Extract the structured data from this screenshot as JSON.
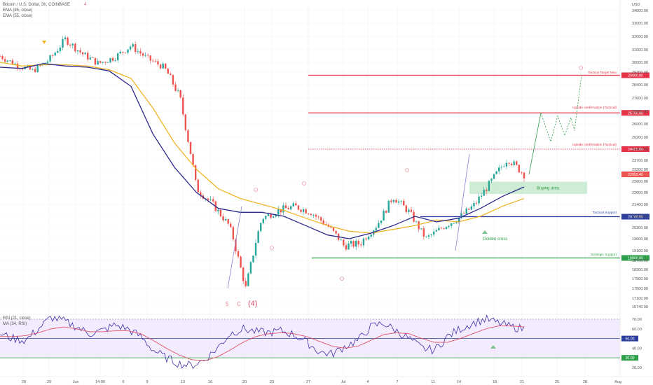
{
  "chart_data": {
    "type": "candlestick",
    "title": "Bitcoin / U.S. Dollar, 3h, COINBASE",
    "title_marker": "4",
    "indicators": [
      "EMA (85, close)",
      "EMA (55, close)"
    ],
    "y_axis": {
      "label": "USD",
      "ticks": [
        16740,
        17100,
        17500,
        17900,
        18300,
        18700,
        19100,
        19600,
        20200,
        20800,
        21400,
        22000,
        22600,
        23200,
        23700,
        24400,
        25200,
        26000,
        26800,
        27600,
        28400,
        29200,
        30000,
        31000,
        32000,
        33000,
        34000
      ],
      "tick_labels": [
        "16740.00",
        "17100.00",
        "17500.00",
        "17900.00",
        "18300.00",
        "18700.00",
        "19100.00",
        "19600.00",
        "20200.00",
        "20800.00",
        "21400.00",
        "22000.00",
        "22600.00",
        "23200.00",
        "23700.00",
        "24400.00",
        "25200.00",
        "26000.00",
        "26800.00",
        "27600.00",
        "28400.00",
        "29200.00",
        "30000.00",
        "31000.00",
        "32000.00",
        "33000.00",
        "34000.00"
      ]
    },
    "x_axis": {
      "ticks": [
        "28",
        "29",
        "Jun",
        "14:00",
        "6",
        "9",
        "13",
        "16",
        "20",
        "23",
        "27",
        "Jul",
        "4",
        "7",
        "11",
        "14",
        "18",
        "21",
        "25",
        "28",
        "Aug"
      ]
    },
    "price_path": [
      [
        "28",
        30500
      ],
      [
        "29",
        29800
      ],
      [
        "29b",
        29300
      ],
      [
        "Jun",
        30200
      ],
      [
        "Jun+",
        31800
      ],
      [
        "14:00",
        30700
      ],
      [
        "14:00+",
        29900
      ],
      [
        "6",
        30400
      ],
      [
        "6+",
        31300
      ],
      [
        "9",
        30300
      ],
      [
        "9+",
        29600
      ],
      [
        "13",
        27600
      ],
      [
        "13+",
        22200
      ],
      [
        "16",
        21400
      ],
      [
        "16+",
        20300
      ],
      [
        "20",
        17500
      ],
      [
        "20+",
        20700
      ],
      [
        "23",
        21100
      ],
      [
        "23+",
        21300
      ],
      [
        "27",
        21000
      ],
      [
        "27+",
        20300
      ],
      [
        "Jul",
        19300
      ],
      [
        "4",
        19400
      ],
      [
        "4+",
        20300
      ],
      [
        "7",
        21800
      ],
      [
        "7+",
        21000
      ],
      [
        "11",
        19600
      ],
      [
        "11+",
        20200
      ],
      [
        "14",
        20700
      ],
      [
        "14+",
        21400
      ],
      [
        "18",
        22600
      ],
      [
        "18+",
        23800
      ],
      [
        "21",
        22950
      ]
    ],
    "ema_85_path": [
      30000,
      29700,
      29800,
      29800,
      29700,
      29400,
      28800,
      27000,
      24800,
      23200,
      22200,
      21700,
      21400,
      21100,
      20700,
      20300,
      20000,
      19900,
      20100,
      20300,
      20600,
      20500,
      20800,
      21300,
      21700
    ],
    "ema_55_path": [
      29600,
      29500,
      29900,
      29700,
      29600,
      29300,
      28300,
      25400,
      23300,
      22000,
      21200,
      21000,
      21000,
      20800,
      20300,
      19800,
      19600,
      19900,
      20300,
      20800,
      20500,
      20700,
      21200,
      21800,
      22300
    ],
    "last_price": 22950.45,
    "last_price_label": "22950.45",
    "levels": [
      {
        "name": "Tactical Target Max",
        "value": 29000,
        "label": "29000.00",
        "color": "#e53246",
        "style": "solid"
      },
      {
        "name": "Upside confirmation (Tactical)",
        "value": 26700,
        "label": "26700.00",
        "color": "#e53246",
        "style": "solid"
      },
      {
        "name": "Upside confirmation (Tactical)",
        "value": 24400,
        "label": "24400.00",
        "color": "#e53246",
        "style": "dotted"
      },
      {
        "name": "Tactical Support",
        "value": 20780,
        "label": "20780.00",
        "color": "#2c3e9e",
        "style": "solid"
      },
      {
        "name": "Strategic Support",
        "value": 18800,
        "label": "18800.00",
        "color": "#2e9e4a",
        "style": "solid"
      }
    ],
    "zones": [
      {
        "name": "Buying area",
        "from": 22000,
        "to": 22500,
        "color": "#a7dfb2"
      }
    ],
    "annotations": [
      {
        "text": "Golden cross",
        "color": "#2e9e4a"
      },
      {
        "text": "5",
        "color": "#e57a8a"
      },
      {
        "text": "C",
        "color": "#e57a8a"
      },
      {
        "text": "(4)",
        "color": "#d94f6a"
      }
    ],
    "rsi": {
      "legend": "RSI (21, close)",
      "ma_legend": "MA (34, RSI)",
      "ticks": [
        20,
        30,
        40,
        50,
        60,
        70
      ],
      "tick_labels": [
        "20.00",
        "30.00",
        "40.00",
        "50.00",
        "60.00",
        "70.00"
      ],
      "levels": [
        {
          "value": 70,
          "color": "#9aa0a6"
        },
        {
          "value": 50,
          "label": "50.00",
          "color": "#2c3e9e"
        },
        {
          "value": 30,
          "label": "30.00",
          "color": "#2e9e4a"
        }
      ],
      "rsi_path": [
        55,
        50,
        48,
        60,
        72,
        68,
        62,
        55,
        58,
        64,
        60,
        52,
        38,
        30,
        24,
        22,
        28,
        40,
        55,
        60,
        57,
        56,
        58,
        54,
        46,
        36,
        34,
        42,
        48,
        62,
        66,
        58,
        50,
        40,
        38,
        52,
        60,
        66,
        70,
        66,
        62,
        60
      ],
      "ma_path": [
        52,
        52,
        53,
        56,
        60,
        62,
        60,
        57,
        57,
        58,
        58,
        55,
        48,
        40,
        33,
        28,
        27,
        31,
        38,
        46,
        52,
        55,
        56,
        55,
        52,
        47,
        42,
        40,
        42,
        48,
        54,
        56,
        55,
        50,
        46,
        46,
        50,
        55,
        60,
        63,
        63,
        62
      ]
    }
  }
}
